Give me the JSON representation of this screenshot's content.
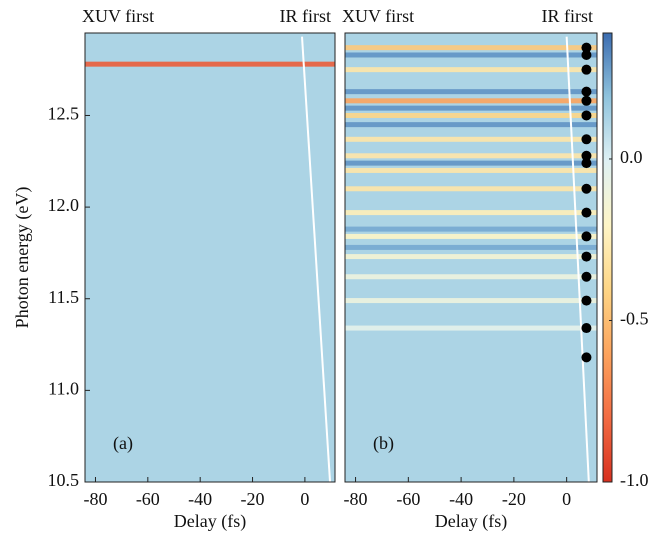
{
  "chart_data": [
    {
      "type": "heatmap",
      "annotations": [
        "XUV first",
        "IR first"
      ],
      "panel_label": "(a)",
      "xlabel": "Delay (fs)",
      "ylabel": "Photon energy (eV)",
      "xlim": [
        -84,
        11.5
      ],
      "ylim": [
        10.5,
        12.95
      ],
      "xticks": [
        -80,
        -60,
        -40,
        -20,
        0
      ],
      "yticks": [
        10.5,
        {
          "value": 11,
          "label": "11.0"
        },
        11.5,
        {
          "value": 12,
          "label": "12.0"
        },
        12.5
      ],
      "background": 0.12,
      "stripes": [
        {
          "energy": 12.78,
          "value": -0.85
        }
      ],
      "overlap_line": {
        "x": [
          -1.1,
          9.6
        ],
        "y": [
          12.93,
          10.5
        ]
      }
    },
    {
      "type": "heatmap",
      "annotations": [
        "XUV first",
        "IR first"
      ],
      "panel_label": "(b)",
      "xlabel": "Delay (fs)",
      "xlim": [
        -84,
        11.5
      ],
      "ylim": [
        10.5,
        12.95
      ],
      "xticks": [
        -80,
        -60,
        -40,
        -20,
        0
      ],
      "background": 0.12,
      "stripes": [
        {
          "energy": 12.87,
          "value": -0.45
        },
        {
          "energy": 12.83,
          "value": 0.3
        },
        {
          "energy": 12.75,
          "value": -0.3
        },
        {
          "energy": 12.63,
          "value": 0.3
        },
        {
          "energy": 12.58,
          "value": -0.6
        },
        {
          "energy": 12.54,
          "value": 0.3
        },
        {
          "energy": 12.5,
          "value": -0.4
        },
        {
          "energy": 12.45,
          "value": 0.3
        },
        {
          "energy": 12.37,
          "value": -0.3
        },
        {
          "energy": 12.28,
          "value": -0.3
        },
        {
          "energy": 12.24,
          "value": 0.3
        },
        {
          "energy": 12.2,
          "value": -0.3
        },
        {
          "energy": 12.1,
          "value": -0.3
        },
        {
          "energy": 11.97,
          "value": -0.25
        },
        {
          "energy": 11.88,
          "value": 0.25
        },
        {
          "energy": 11.84,
          "value": -0.2
        },
        {
          "energy": 11.78,
          "value": 0.25
        },
        {
          "energy": 11.73,
          "value": -0.15
        },
        {
          "energy": 11.62,
          "value": -0.1
        },
        {
          "energy": 11.49,
          "value": -0.1
        },
        {
          "energy": 11.34,
          "value": -0.05
        }
      ],
      "overlap_line": {
        "x": [
          0.0,
          8.4
        ],
        "y": [
          12.93,
          10.5
        ]
      },
      "points": {
        "color": "#000000",
        "x": [
          7.5,
          7.5,
          7.5,
          7.5,
          7.5,
          7.5,
          7.5,
          7.5,
          7.5,
          7.5,
          7.5,
          7.5,
          7.5,
          7.5,
          7.5,
          7.5,
          7.5
        ],
        "y": [
          12.87,
          12.83,
          12.75,
          12.63,
          12.58,
          12.5,
          12.37,
          12.28,
          12.24,
          12.1,
          11.97,
          11.84,
          11.73,
          11.62,
          11.49,
          11.34,
          11.18
        ]
      },
      "clim": [
        -1.0,
        0.39
      ],
      "cticks": [
        {
          "value": 0,
          "label": "0.0"
        },
        -0.5,
        {
          "value": -1,
          "label": "-1.0"
        }
      ],
      "colormap": [
        "#d7301f",
        "#f26b43",
        "#fca35d",
        "#fdd585",
        "#fef5c6",
        "#dff1f4",
        "#8fc3dd",
        "#3b6cb0"
      ]
    }
  ]
}
